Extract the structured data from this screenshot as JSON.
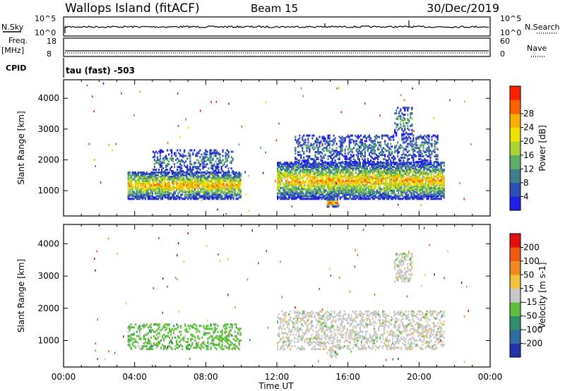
{
  "header": {
    "station": "Wallops Island (fitACF)",
    "beam": "Beam 15",
    "date": "30/Dec/2019"
  },
  "top_panels": {
    "nsky_label": "N.Sky",
    "nsky_tick_hi": "10^5",
    "nsky_tick_lo": "10^0",
    "nsearch_label": "N.Search",
    "freq_label": "Freq.",
    "freq_unit": "[MHz]",
    "freq_tick_hi": "18",
    "freq_tick_lo": "8",
    "nave_tick_hi": "60",
    "nave_tick_lo": "0",
    "nave_label": "Nave",
    "cpid_label": "CPID",
    "cpid_value": "tau (fast) -503"
  },
  "colors": {
    "noise_trace": "#000000",
    "frame": "#000000"
  },
  "chart_data": [
    {
      "type": "heatmap",
      "xlabel": "",
      "ylabel": "Slant Range [km]",
      "x_ticks": [
        "00:00",
        "04:00",
        "08:00",
        "12:00",
        "16:00",
        "20:00",
        "00:00"
      ],
      "y_ticks": [
        "1000",
        "2000",
        "3000",
        "4000"
      ],
      "xlim_hours": [
        0,
        24
      ],
      "ylim_km": [
        180,
        4600
      ],
      "colorbar": {
        "label": "Power [dB]",
        "ticks": [
          "4",
          "8",
          "12",
          "16",
          "20",
          "24",
          "28"
        ],
        "colors": [
          "#1f1fe6",
          "#2f4fb4",
          "#3f7f8c",
          "#5cae6a",
          "#a8d432",
          "#f0e000",
          "#ffb000",
          "#ff6000",
          "#ff2000"
        ]
      },
      "regions": [
        {
          "name": "morning-echo",
          "t0": 3.6,
          "t1": 10.0,
          "r0": 700,
          "r1": 1600,
          "level": 6
        },
        {
          "name": "morning-sparse",
          "t0": 5.0,
          "t1": 9.5,
          "r0": 1600,
          "r1": 2300,
          "level": 2
        },
        {
          "name": "evening-echo",
          "t0": 12.0,
          "t1": 21.4,
          "r0": 700,
          "r1": 1900,
          "level": 6
        },
        {
          "name": "evening-sparse",
          "t0": 13.0,
          "t1": 21.0,
          "r0": 1900,
          "r1": 2800,
          "level": 2
        },
        {
          "name": "late-spike",
          "t0": 18.6,
          "t1": 19.6,
          "r0": 2800,
          "r1": 3700,
          "level": 3
        },
        {
          "name": "lowtail",
          "t0": 14.8,
          "t1": 15.4,
          "r0": 450,
          "r1": 700,
          "level": 8
        }
      ]
    },
    {
      "type": "heatmap",
      "xlabel": "Time UT",
      "ylabel": "Slant Range [km]",
      "x_ticks": [
        "00:00",
        "04:00",
        "08:00",
        "12:00",
        "16:00",
        "20:00",
        "00:00"
      ],
      "y_ticks": [
        "1000",
        "2000",
        "3000",
        "4000"
      ],
      "xlim_hours": [
        0,
        24
      ],
      "ylim_km": [
        180,
        4600
      ],
      "colorbar": {
        "label": "Velocity [m s-1]",
        "ticks": [
          "200",
          "100",
          "50",
          "15",
          "-15",
          "-50",
          "-100",
          "-200"
        ],
        "colors": [
          "#2233aa",
          "#2f6fa0",
          "#2f8f6a",
          "#5fbf3a",
          "#c8c8c8",
          "#f0c040",
          "#f08a20",
          "#f05a10",
          "#e01010"
        ]
      },
      "regions": [
        {
          "name": "morning-echo",
          "t0": 3.6,
          "t1": 10.0,
          "r0": 700,
          "r1": 1500,
          "level": 3
        },
        {
          "name": "evening-echo",
          "t0": 12.0,
          "t1": 21.4,
          "r0": 700,
          "r1": 1900,
          "level": 4
        },
        {
          "name": "late-spike",
          "t0": 18.6,
          "t1": 19.6,
          "r0": 2800,
          "r1": 3700,
          "level": 4
        },
        {
          "name": "lowtail",
          "t0": 14.8,
          "t1": 15.4,
          "r0": 450,
          "r1": 700,
          "level": 4
        }
      ]
    }
  ]
}
